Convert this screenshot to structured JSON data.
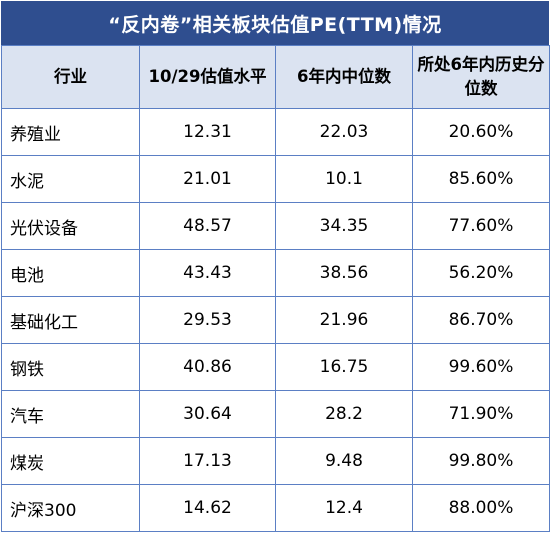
{
  "title": "“反内卷”相关板块估值PE(TTM)情况",
  "chart_data": {
    "type": "table",
    "title": "“反内卷”相关板块估值PE(TTM)情况",
    "columns": [
      "行业",
      "10/29估值水平",
      "6年内中位数",
      "所处6年内历史分位数"
    ],
    "rows": [
      [
        "养殖业",
        "12.31",
        "22.03",
        "20.60%"
      ],
      [
        "水泥",
        "21.01",
        "10.1",
        "85.60%"
      ],
      [
        "光伏设备",
        "48.57",
        "34.35",
        "77.60%"
      ],
      [
        "电池",
        "43.43",
        "38.56",
        "56.20%"
      ],
      [
        "基础化工",
        "29.53",
        "21.96",
        "86.70%"
      ],
      [
        "钢铁",
        "40.86",
        "16.75",
        "99.60%"
      ],
      [
        "汽车",
        "30.64",
        "28.2",
        "71.90%"
      ],
      [
        "煤炭",
        "17.13",
        "9.48",
        "99.80%"
      ],
      [
        "沪深300",
        "14.62",
        "12.4",
        "88.00%"
      ]
    ]
  },
  "colors": {
    "title_bg": "#2f4e8f",
    "header_bg": "#dbe3f1",
    "border": "#5b7fc4"
  }
}
